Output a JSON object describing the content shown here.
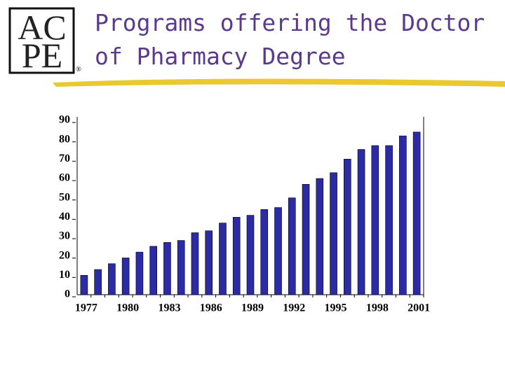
{
  "logo": {
    "top": "AC",
    "bottom": "PE",
    "mark": "®"
  },
  "chart_data": {
    "type": "bar",
    "title": [
      "Programs offering the Doctor",
      "of Pharmacy Degree"
    ],
    "categories": [
      "1977",
      null,
      null,
      "1980",
      null,
      null,
      "1983",
      null,
      null,
      "1986",
      null,
      null,
      "1989",
      null,
      null,
      "1992",
      null,
      null,
      "1995",
      null,
      null,
      "1998",
      null,
      null,
      "2001"
    ],
    "values": [
      10,
      13,
      16,
      19,
      22,
      25,
      27,
      28,
      32,
      33,
      37,
      40,
      41,
      44,
      45,
      50,
      57,
      60,
      63,
      70,
      75,
      77,
      77,
      82,
      84
    ],
    "color": "#2b2ba6",
    "ylim": [
      0,
      90
    ],
    "yticks": [
      0,
      10,
      20,
      30,
      40,
      50,
      60,
      70,
      80,
      90
    ]
  }
}
